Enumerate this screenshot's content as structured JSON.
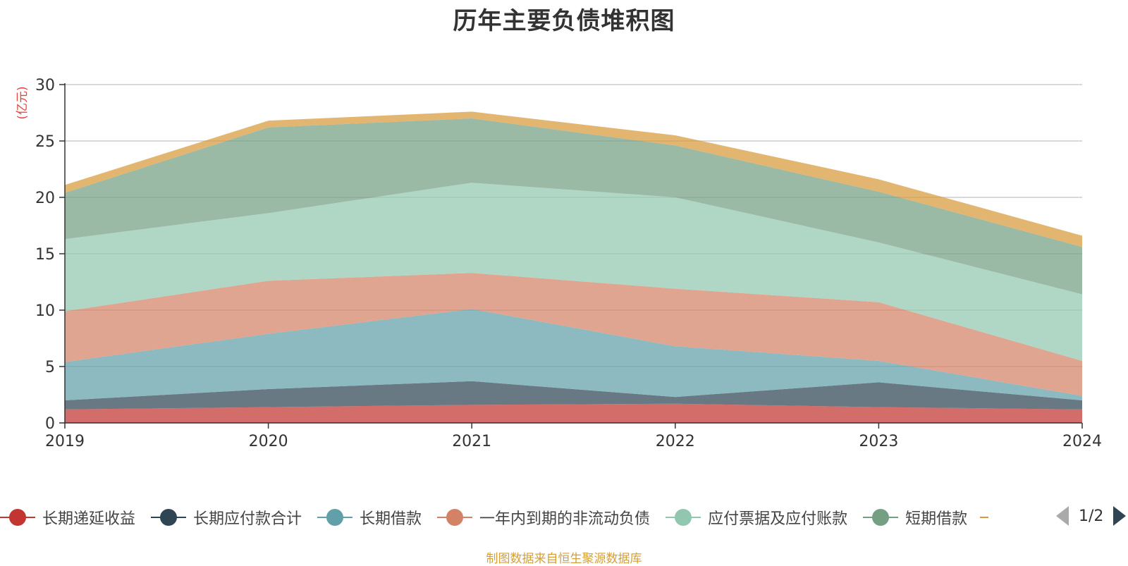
{
  "chart_data": {
    "type": "area",
    "stacked": true,
    "title": "历年主要负债堆积图",
    "ylabel": "(亿元)",
    "x": [
      "2019",
      "2020",
      "2021",
      "2022",
      "2023",
      "2024"
    ],
    "ylim": [
      0,
      30
    ],
    "yticks": [
      0,
      5,
      10,
      15,
      20,
      25,
      30
    ],
    "grid": true,
    "series": [
      {
        "name": "长期递延收益",
        "color": "#c23531",
        "values": [
          1.2,
          1.4,
          1.6,
          1.7,
          1.4,
          1.2
        ]
      },
      {
        "name": "长期应付款合计",
        "color": "#2f4554",
        "values": [
          0.8,
          1.6,
          2.1,
          0.6,
          2.2,
          0.8
        ]
      },
      {
        "name": "长期借款",
        "color": "#61a0a8",
        "values": [
          3.4,
          4.9,
          6.4,
          4.5,
          1.9,
          0.4
        ]
      },
      {
        "name": "一年内到期的非流动负债",
        "color": "#d48265",
        "values": [
          4.5,
          4.7,
          3.2,
          5.1,
          5.2,
          3.1
        ]
      },
      {
        "name": "应付票据及应付账款",
        "color": "#91c7ae",
        "values": [
          6.4,
          6.0,
          8.0,
          8.1,
          5.3,
          5.9
        ]
      },
      {
        "name": "短期借款",
        "color": "#749f83",
        "values": [
          4.1,
          7.6,
          5.7,
          4.6,
          4.5,
          4.2
        ]
      },
      {
        "name": "",
        "color": "#d79a3a",
        "values": [
          0.7,
          0.6,
          0.6,
          0.9,
          1.1,
          1.0
        ]
      }
    ]
  },
  "legend": {
    "page_text": "1/2"
  },
  "footer": {
    "source": "制图数据来自恒生聚源数据库"
  }
}
